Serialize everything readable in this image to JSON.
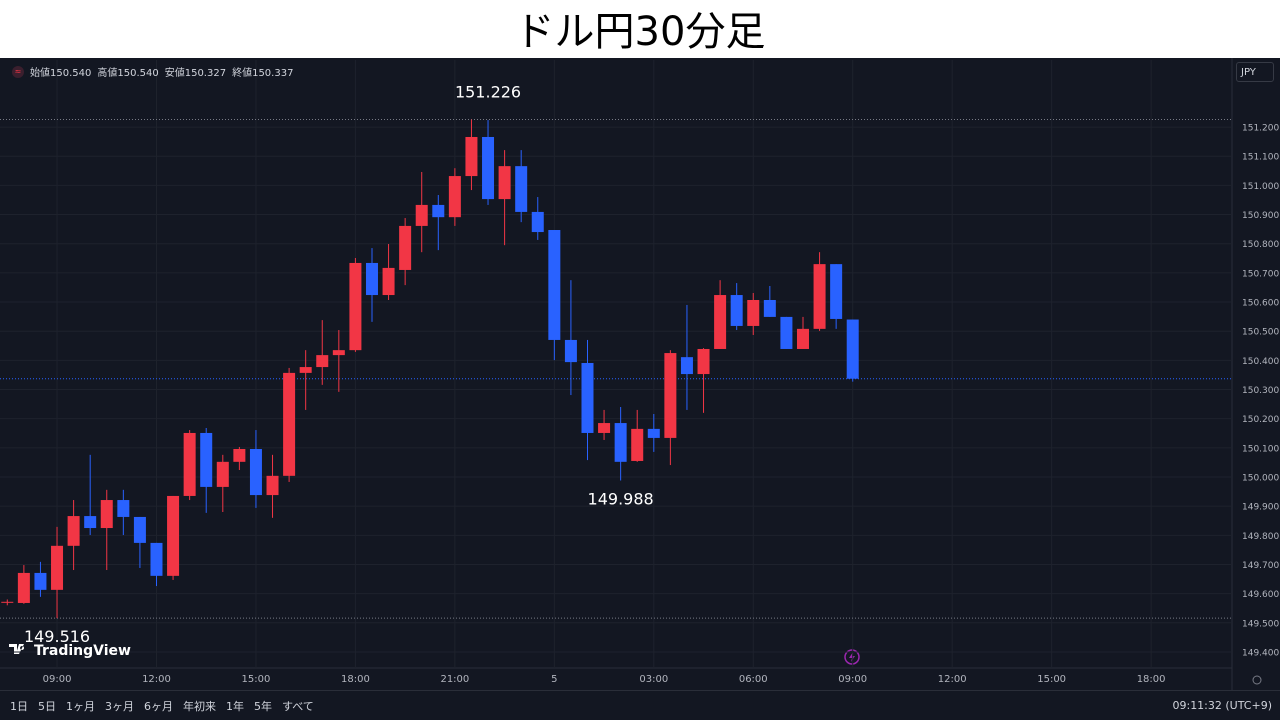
{
  "chart_data": {
    "type": "candlestick",
    "title": "ドル円30分足",
    "ohlc_legend": [
      {
        "label": "始値",
        "value": "150.540"
      },
      {
        "label": "高値",
        "value": "150.540"
      },
      {
        "label": "安値",
        "value": "150.327"
      },
      {
        "label": "終値",
        "value": "150.337"
      }
    ],
    "currency": "JPY",
    "x": [
      7.5,
      8,
      8.5,
      9,
      9.5,
      10,
      10.5,
      11,
      11.5,
      12,
      12.5,
      13,
      13.5,
      14,
      14.5,
      15,
      15.5,
      16,
      16.5,
      17,
      17.5,
      18,
      18.5,
      19,
      19.5,
      20,
      20.5,
      21,
      21.5,
      22,
      22.5,
      23,
      23.5,
      24,
      24.5,
      25,
      25.5,
      26,
      26.5,
      27,
      27.5,
      28,
      28.5,
      29,
      29.5,
      30,
      30.5,
      31,
      31.5,
      32,
      32.5,
      33
    ],
    "open": [
      149.57,
      149.568,
      149.671,
      149.613,
      149.764,
      149.866,
      149.825,
      149.921,
      149.863,
      149.774,
      149.661,
      149.935,
      150.151,
      149.966,
      150.052,
      150.096,
      149.938,
      150.004,
      150.357,
      150.377,
      150.418,
      150.435,
      150.734,
      150.624,
      150.71,
      150.861,
      150.933,
      150.891,
      151.032,
      151.166,
      150.953,
      151.066,
      150.909,
      150.847,
      150.47,
      150.391,
      150.151,
      150.185,
      150.055,
      150.165,
      150.134,
      150.411,
      150.353,
      150.439,
      150.624,
      150.518,
      150.607,
      150.549,
      150.439,
      150.508,
      150.73,
      150.54
    ],
    "high": [
      149.58,
      149.698,
      149.709,
      149.829,
      149.921,
      150.076,
      149.956,
      149.956,
      149.863,
      149.774,
      149.935,
      150.161,
      150.168,
      150.076,
      150.103,
      150.161,
      150.076,
      150.374,
      150.435,
      150.538,
      150.504,
      150.751,
      150.785,
      150.799,
      150.888,
      151.046,
      150.967,
      151.059,
      151.226,
      151.224,
      151.121,
      151.121,
      150.96,
      150.847,
      150.675,
      150.47,
      150.23,
      150.24,
      150.23,
      150.216,
      150.435,
      150.59,
      150.442,
      150.675,
      150.665,
      150.631,
      150.655,
      150.549,
      150.549,
      150.771,
      150.73,
      150.54
    ],
    "low": [
      149.56,
      149.565,
      149.589,
      149.516,
      149.681,
      149.801,
      149.681,
      149.801,
      149.688,
      149.626,
      149.647,
      149.921,
      149.877,
      149.88,
      150.024,
      149.894,
      149.86,
      149.983,
      150.23,
      150.316,
      150.292,
      150.429,
      150.532,
      150.607,
      150.658,
      150.771,
      150.778,
      150.861,
      150.984,
      150.933,
      150.795,
      150.874,
      150.813,
      150.401,
      150.281,
      150.058,
      150.127,
      149.988,
      150.052,
      150.086,
      150.041,
      150.23,
      150.22,
      150.439,
      150.504,
      150.487,
      150.549,
      150.439,
      150.439,
      150.501,
      150.508,
      150.327
    ],
    "close": [
      149.572,
      149.671,
      149.613,
      149.764,
      149.866,
      149.825,
      149.921,
      149.863,
      149.774,
      149.661,
      149.935,
      150.151,
      149.966,
      150.052,
      150.096,
      149.938,
      150.004,
      150.357,
      150.377,
      150.418,
      150.435,
      150.734,
      150.624,
      150.717,
      150.861,
      150.933,
      150.891,
      151.032,
      151.166,
      150.953,
      151.066,
      150.909,
      150.84,
      150.47,
      150.394,
      150.151,
      150.185,
      150.052,
      150.165,
      150.134,
      150.425,
      150.353,
      150.439,
      150.624,
      150.518,
      150.607,
      150.549,
      150.439,
      150.508,
      150.73,
      150.542,
      150.337
    ],
    "up_color": "#f23645",
    "down_color": "#2962ff",
    "xlim": [
      7.28,
      44.44
    ],
    "xticks": [
      {
        "value": 9,
        "label": "09:00"
      },
      {
        "value": 12,
        "label": "12:00"
      },
      {
        "value": 15,
        "label": "15:00"
      },
      {
        "value": 18,
        "label": "18:00"
      },
      {
        "value": 21,
        "label": "21:00"
      },
      {
        "value": 24,
        "label": "5"
      },
      {
        "value": 27,
        "label": "03:00"
      },
      {
        "value": 30,
        "label": "06:00"
      },
      {
        "value": 33,
        "label": "09:00"
      },
      {
        "value": 36,
        "label": "12:00"
      },
      {
        "value": 39,
        "label": "15:00"
      },
      {
        "value": 42,
        "label": "18:00"
      }
    ],
    "ylim": [
      149.345,
      151.43
    ],
    "yticks": [
      {
        "value": 149.4,
        "label": "149.400"
      },
      {
        "value": 149.5,
        "label": "149.500"
      },
      {
        "value": 149.6,
        "label": "149.600"
      },
      {
        "value": 149.7,
        "label": "149.700"
      },
      {
        "value": 149.8,
        "label": "149.800"
      },
      {
        "value": 149.9,
        "label": "149.900"
      },
      {
        "value": 150.0,
        "label": "150.000"
      },
      {
        "value": 150.1,
        "label": "150.100"
      },
      {
        "value": 150.2,
        "label": "150.200"
      },
      {
        "value": 150.3,
        "label": "150.300"
      },
      {
        "value": 150.4,
        "label": "150.400"
      },
      {
        "value": 150.5,
        "label": "150.500"
      },
      {
        "value": 150.6,
        "label": "150.600"
      },
      {
        "value": 150.7,
        "label": "150.700"
      },
      {
        "value": 150.8,
        "label": "150.800"
      },
      {
        "value": 150.9,
        "label": "150.900"
      },
      {
        "value": 151.0,
        "label": "151.000"
      },
      {
        "value": 151.1,
        "label": "151.100"
      },
      {
        "value": 151.2,
        "label": "151.200"
      }
    ],
    "grid": true,
    "price_lines": [
      151.226,
      149.516
    ],
    "last_price": 150.337,
    "last_price_color": "#2962ff",
    "annotations": [
      {
        "value": 151.226,
        "label": "151.226",
        "x": 22
      },
      {
        "value": 149.988,
        "label": "149.988",
        "x": 26
      },
      {
        "value": 149.516,
        "label": "149.516",
        "x": 9
      }
    ]
  },
  "brand": "TradingView",
  "toolbar": {
    "ranges": [
      "1日",
      "5日",
      "1ヶ月",
      "3ヶ月",
      "6ヶ月",
      "年初来",
      "1年",
      "5年",
      "すべて"
    ],
    "clock": "09:11:32 (UTC+9)"
  }
}
